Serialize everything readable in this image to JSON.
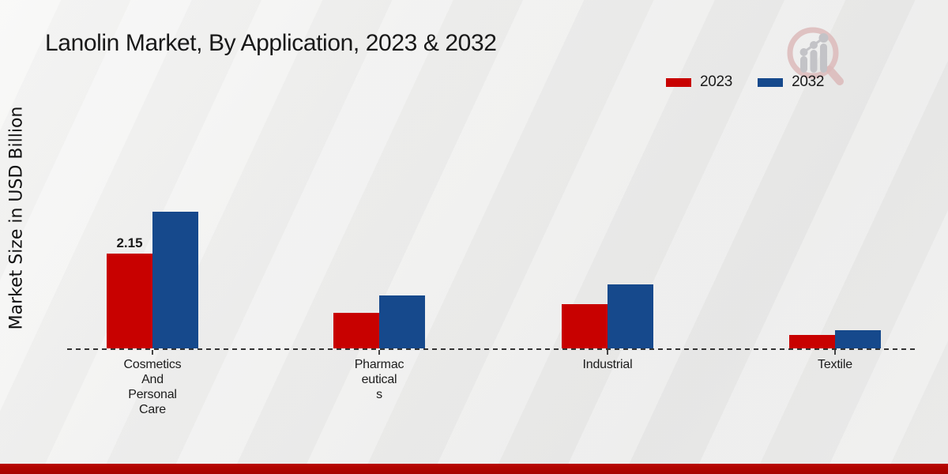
{
  "title": "Lanolin Market, By Application, 2023 & 2032",
  "y_axis_label": "Market Size in USD Billion",
  "colors": {
    "series_2023": "#c80100",
    "series_2032": "#16498c",
    "bottom_band": "#b90601",
    "axis_line": "#333333",
    "background": "#ececeb"
  },
  "legend": {
    "items": [
      {
        "label": "2023",
        "color": "#c80100"
      },
      {
        "label": "2032",
        "color": "#16498c"
      }
    ]
  },
  "chart_data": {
    "type": "bar",
    "title": "Lanolin Market, By Application, 2023 & 2032",
    "ylabel": "Market Size in USD Billion",
    "xlabel": "",
    "categories": [
      "Cosmetics And Personal Care",
      "Pharmaceuticals",
      "Industrial",
      "Textile"
    ],
    "category_label_lines": [
      [
        "Cosmetics",
        "And",
        "Personal",
        "Care"
      ],
      [
        "Pharmac",
        "eutical",
        "s"
      ],
      [
        "Industrial"
      ],
      [
        "Textile"
      ]
    ],
    "series": [
      {
        "name": "2023",
        "color": "#c80100",
        "values": [
          2.15,
          0.8,
          1.0,
          0.3
        ]
      },
      {
        "name": "2032",
        "color": "#16498c",
        "values": [
          3.1,
          1.2,
          1.45,
          0.42
        ]
      }
    ],
    "data_labels": [
      {
        "series_index": 0,
        "category_index": 0,
        "text": "2.15"
      }
    ],
    "ylim": [
      0,
      3.5
    ],
    "grid": false,
    "legend_position": "top-right",
    "baseline_style": "dashed"
  },
  "logo": {
    "name": "market-research-future-logo"
  }
}
